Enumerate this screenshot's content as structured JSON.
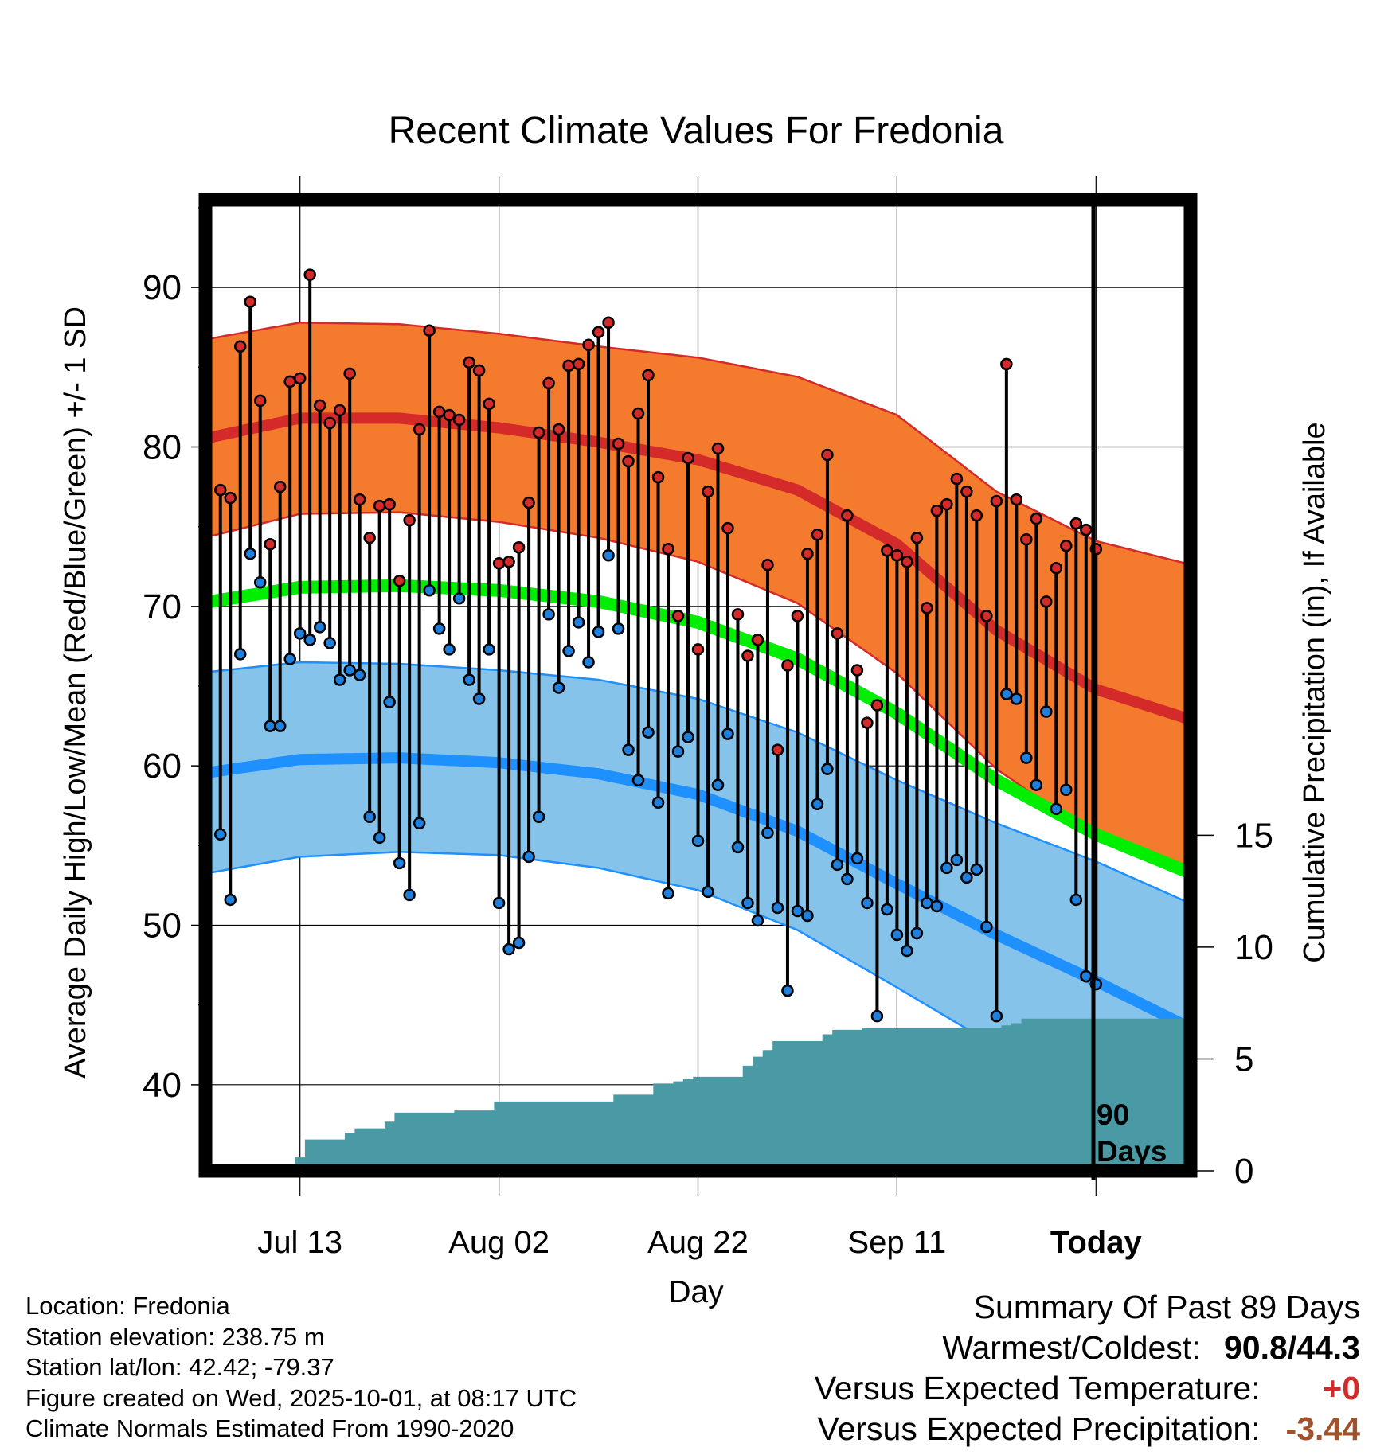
{
  "chart_data": {
    "type": "line",
    "title": "Recent Climate Values For Fredonia",
    "xlabel": "Day",
    "ylabel_left": "Average Daily High/Low/Mean (Red/Blue/Green) +/- 1 SD",
    "ylabel_right": "Cumulative Precipitation (in), If Available",
    "ylim_left": [
      34.6,
      95.5
    ],
    "ylim_right": [
      0,
      43.4
    ],
    "xlim": [
      -89.5,
      9.5
    ],
    "x_tick_labels": [
      {
        "x": -80,
        "label": "Jul 13"
      },
      {
        "x": -60,
        "label": "Aug 02"
      },
      {
        "x": -40,
        "label": "Aug 22"
      },
      {
        "x": -20,
        "label": "Sep 11"
      },
      {
        "x": 0,
        "label": "Today"
      }
    ],
    "y_ticks_left": [
      40,
      50,
      60,
      70,
      80,
      90
    ],
    "y_ticks_right": [
      0,
      5,
      10,
      15
    ],
    "today_label": [
      "90",
      "Days"
    ],
    "normal_curves": {
      "x": [
        -89,
        -80,
        -70,
        -60,
        -50,
        -40,
        -30,
        -20,
        -10,
        0,
        9
      ],
      "high_mean": [
        80.6,
        81.8,
        81.8,
        81.2,
        80.3,
        79.2,
        77.3,
        73.9,
        68.5,
        64.8,
        63.0
      ],
      "high_sd": [
        6.2,
        6.0,
        5.9,
        5.9,
        6.0,
        6.4,
        7.1,
        8.1,
        8.7,
        9.3,
        9.7
      ],
      "low_mean": [
        59.6,
        60.4,
        60.5,
        60.2,
        59.5,
        58.2,
        55.9,
        52.6,
        49.4,
        46.5,
        43.7
      ],
      "low_sd": [
        6.3,
        6.1,
        5.9,
        5.8,
        5.9,
        6.0,
        6.2,
        6.5,
        7.0,
        7.5,
        7.8
      ],
      "mean": [
        70.3,
        71.2,
        71.3,
        71.0,
        70.3,
        69.0,
        66.7,
        63.3,
        59.1,
        55.7,
        53.4
      ]
    },
    "series": [
      {
        "name": "Daily High",
        "values": [
          77.3,
          76.8,
          86.3,
          89.1,
          82.9,
          73.9,
          77.5,
          84.1,
          84.3,
          90.8,
          82.6,
          81.5,
          82.3,
          84.6,
          76.7,
          74.3,
          76.3,
          76.4,
          71.6,
          75.4,
          81.1,
          87.3,
          82.2,
          82.0,
          81.7,
          85.3,
          84.8,
          82.7,
          72.7,
          72.8,
          73.7,
          76.5,
          80.9,
          84.0,
          81.1,
          85.1,
          85.2,
          86.4,
          87.2,
          87.8,
          80.2,
          79.1,
          82.1,
          84.5,
          78.1,
          73.6,
          69.4,
          79.3,
          67.3,
          77.2,
          79.9,
          74.9,
          69.5,
          66.9,
          67.9,
          72.6,
          61.0,
          66.3,
          69.4,
          73.3,
          74.5,
          79.5,
          68.3,
          75.7,
          66.0,
          62.7,
          63.8,
          73.5,
          73.2,
          72.8,
          74.3,
          69.9,
          76.0,
          76.4,
          78.0,
          77.2,
          75.7,
          69.4,
          76.6,
          85.2,
          76.7,
          74.2,
          75.5,
          70.3,
          72.4,
          73.8,
          75.2,
          74.8,
          73.6
        ]
      },
      {
        "name": "Daily Low",
        "values": [
          55.7,
          51.6,
          67.0,
          73.3,
          71.5,
          62.5,
          62.5,
          66.7,
          68.3,
          67.9,
          68.7,
          67.7,
          65.4,
          66.0,
          65.7,
          56.8,
          55.5,
          64.0,
          53.9,
          51.9,
          56.4,
          71.0,
          68.6,
          67.3,
          70.5,
          65.4,
          64.2,
          67.3,
          51.4,
          48.5,
          48.9,
          54.3,
          56.8,
          69.5,
          64.9,
          67.2,
          69.0,
          66.5,
          68.4,
          73.2,
          68.6,
          61.0,
          59.1,
          62.1,
          57.7,
          52.0,
          60.9,
          61.8,
          55.3,
          52.1,
          58.8,
          62.0,
          54.9,
          51.4,
          50.3,
          55.8,
          51.1,
          45.9,
          50.9,
          50.6,
          57.6,
          59.8,
          53.8,
          52.9,
          54.2,
          51.4,
          44.3,
          51.0,
          49.4,
          48.4,
          49.5,
          51.4,
          51.2,
          53.6,
          54.1,
          53.0,
          53.5,
          49.9,
          44.3,
          64.5,
          64.2,
          60.5,
          58.8,
          63.4,
          57.3,
          58.5,
          51.6,
          46.8,
          46.3
        ]
      },
      {
        "name": "Cumulative Precipitation",
        "values": [
          0,
          0,
          0,
          0,
          0,
          0,
          0,
          0.3,
          0.6,
          1.4,
          1.4,
          1.4,
          1.4,
          1.7,
          1.9,
          1.9,
          1.9,
          2.2,
          2.6,
          2.6,
          2.6,
          2.6,
          2.6,
          2.6,
          2.7,
          2.7,
          2.7,
          2.7,
          3.1,
          3.1,
          3.1,
          3.1,
          3.1,
          3.1,
          3.1,
          3.1,
          3.1,
          3.1,
          3.1,
          3.1,
          3.4,
          3.4,
          3.4,
          3.4,
          3.9,
          3.9,
          4.0,
          4.1,
          4.2,
          4.2,
          4.2,
          4.2,
          4.2,
          4.7,
          5.1,
          5.4,
          5.8,
          5.8,
          5.8,
          5.8,
          5.8,
          6.1,
          6.3,
          6.3,
          6.3,
          6.4,
          6.4,
          6.4,
          6.4,
          6.4,
          6.4,
          6.4,
          6.4,
          6.4,
          6.4,
          6.4,
          6.4,
          6.4,
          6.4,
          6.5,
          6.6,
          6.8,
          6.8,
          6.8,
          6.8,
          6.8,
          6.8,
          6.8,
          6.8
        ]
      }
    ],
    "colors": {
      "high_band": "#f47b2e",
      "high_line": "#d42a2a",
      "low_band": "#85c3ea",
      "low_line": "#1e90ff",
      "mean_line": "#00ee00",
      "precip": "#4a9aa5",
      "high_dot": "#d42a2a",
      "low_dot": "#1e7fdd"
    }
  },
  "info": {
    "location": "Location: Fredonia",
    "elevation": "Station elevation: 238.75 m",
    "latlon": "Station lat/lon: 42.42; -79.37",
    "created": "Figure created on Wed, 2025-10-01, at 08:17 UTC",
    "normals": "Climate Normals Estimated From 1990-2020"
  },
  "summary": {
    "title": "Summary Of Past 89 Days",
    "warmest_label": "Warmest/Coldest:",
    "warmest_value": "90.8/44.3",
    "temp_label": "Versus Expected Temperature:",
    "temp_value": "+0",
    "temp_color": "#d42a2a",
    "precip_label": "Versus Expected Precipitation:",
    "precip_value": "-3.44",
    "precip_color": "#a0522d"
  }
}
